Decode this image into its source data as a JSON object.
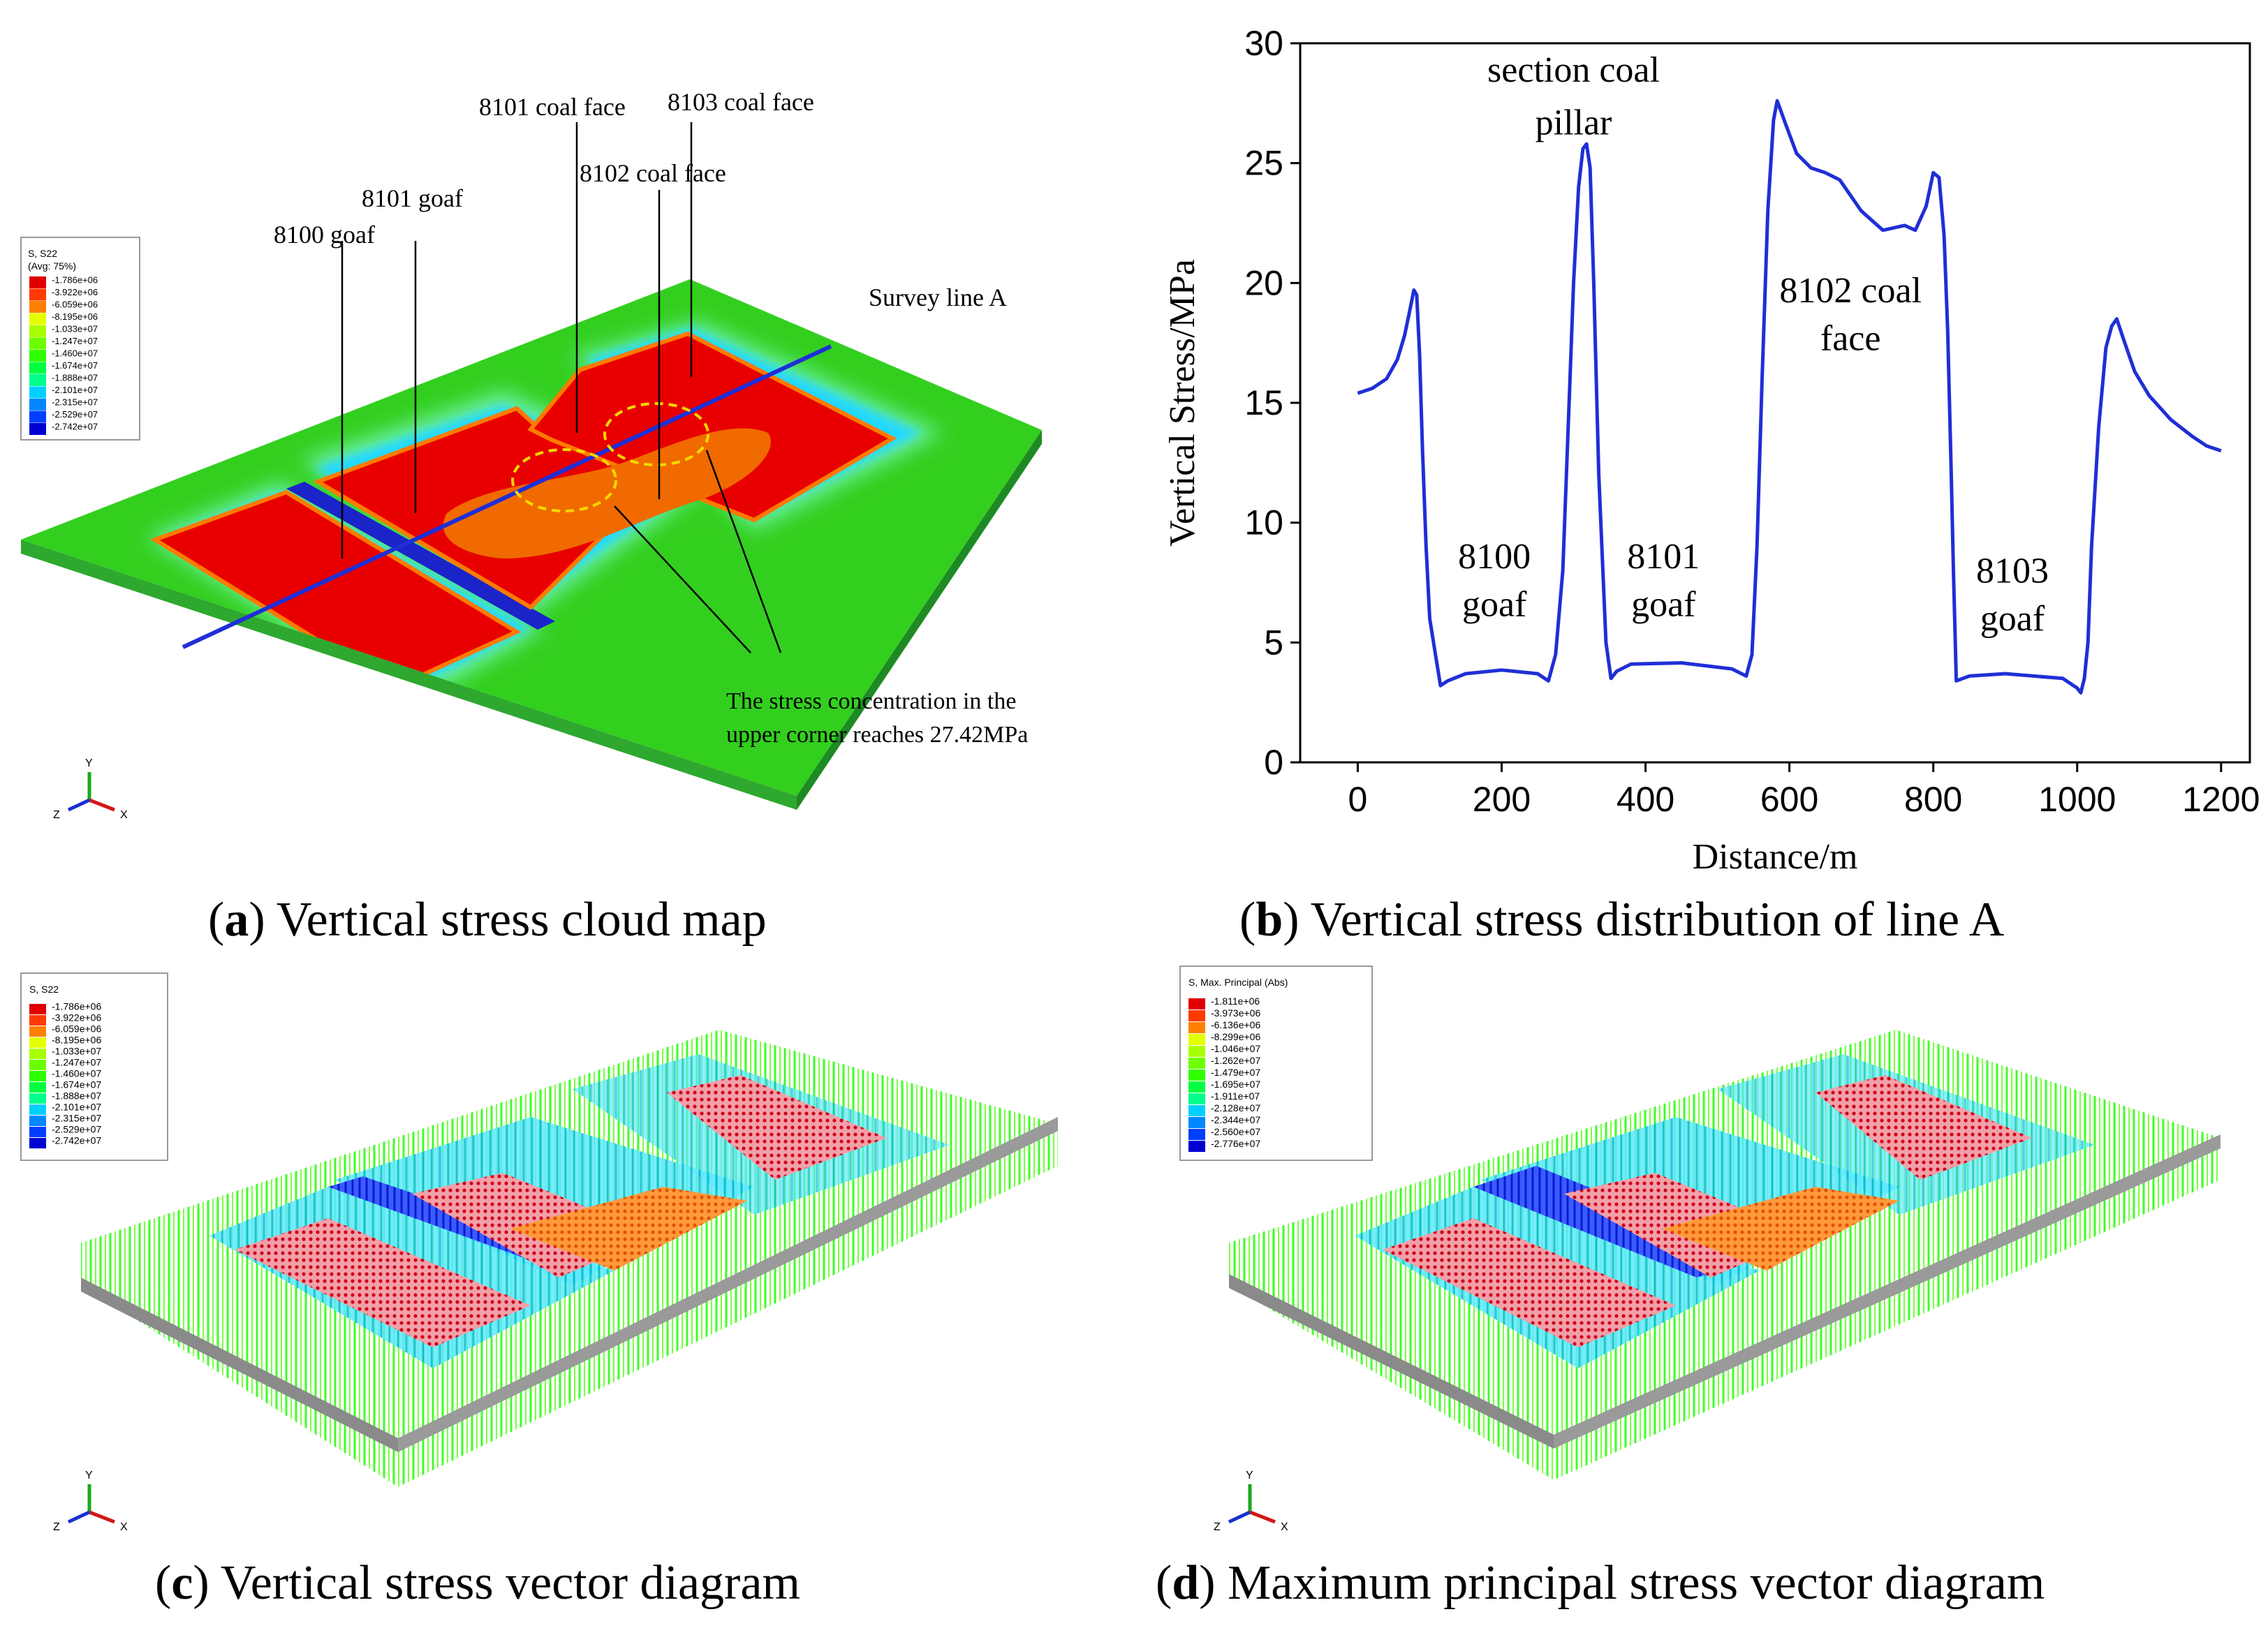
{
  "colors": {
    "legend_scale": [
      "#e00000",
      "#ff3a00",
      "#ff8000",
      "#ffbf00",
      "#e3ff00",
      "#a8ff00",
      "#6cff00",
      "#30ff00",
      "#00ff40",
      "#00ff8c",
      "#00ffd6",
      "#00d0ff",
      "#0087ff",
      "#003eff",
      "#0000d0"
    ],
    "survey_line": "#1f2fd6",
    "chart_line": "#1f2fd6",
    "dashed_circle": "#f5d800"
  },
  "panel_a": {
    "caption_letter": "a",
    "caption_text": ") Vertical stress cloud map",
    "legend": {
      "title1": "S, S22",
      "title2": "(Avg: 75%)",
      "values": [
        "-1.786e+06",
        "-3.922e+06",
        "-6.059e+06",
        "-8.195e+06",
        "-1.033e+07",
        "-1.247e+07",
        "-1.460e+07",
        "-1.674e+07",
        "-1.888e+07",
        "-2.101e+07",
        "-2.315e+07",
        "-2.529e+07",
        "-2.742e+07"
      ]
    },
    "labels": {
      "goaf_8100": "8100 goaf",
      "goaf_8101": "8101 goaf",
      "face_8101": "8101 coal face",
      "face_8102": "8102 coal face",
      "face_8103": "8103 coal face",
      "survey_line": "Survey line A",
      "stress_note_1": "The stress concentration in the",
      "stress_note_2": "upper corner reaches 27.42MPa"
    },
    "axis_triad": {
      "y": "Y",
      "z": "Z",
      "x": "X"
    }
  },
  "panel_b": {
    "caption_letter": "b",
    "caption_text": ") Vertical stress distribution of line A"
  },
  "panel_c": {
    "caption_letter": "c",
    "caption_text": ") Vertical stress vector diagram",
    "legend": {
      "title1": "S, S22",
      "values": [
        "-1.786e+06",
        "-3.922e+06",
        "-6.059e+06",
        "-8.195e+06",
        "-1.033e+07",
        "-1.247e+07",
        "-1.460e+07",
        "-1.674e+07",
        "-1.888e+07",
        "-2.101e+07",
        "-2.315e+07",
        "-2.529e+07",
        "-2.742e+07"
      ]
    },
    "axis_triad": {
      "y": "Y",
      "z": "Z",
      "x": "X"
    }
  },
  "panel_d": {
    "caption_letter": "d",
    "caption_text": ") Maximum principal stress vector diagram",
    "legend": {
      "title1": "S, Max. Principal (Abs)",
      "values": [
        "-1.811e+06",
        "-3.973e+06",
        "-6.136e+06",
        "-8.299e+06",
        "-1.046e+07",
        "-1.262e+07",
        "-1.479e+07",
        "-1.695e+07",
        "-1.911e+07",
        "-2.128e+07",
        "-2.344e+07",
        "-2.560e+07",
        "-2.776e+07"
      ]
    },
    "axis_triad": {
      "y": "Y",
      "z": "Z",
      "x": "X"
    }
  },
  "chart_data": {
    "type": "line",
    "title": "",
    "xlabel": "Distance/m",
    "ylabel": "Vertical Stress/MPa",
    "xlim": [
      -80,
      1240
    ],
    "ylim": [
      0,
      30
    ],
    "xticks": [
      0,
      200,
      400,
      600,
      800,
      1000,
      1200
    ],
    "yticks": [
      0,
      5,
      10,
      15,
      20,
      25,
      30
    ],
    "grid": false,
    "legend": "none",
    "annotations": [
      {
        "text": "section coal",
        "x": 300,
        "y": 28.4
      },
      {
        "text": "pillar",
        "x": 300,
        "y": 26.2
      },
      {
        "text": "8102 coal",
        "x": 685,
        "y": 19.2
      },
      {
        "text": "face",
        "x": 685,
        "y": 17.2
      },
      {
        "text": "8100",
        "x": 190,
        "y": 8.1
      },
      {
        "text": "goaf",
        "x": 190,
        "y": 6.1
      },
      {
        "text": "8101",
        "x": 425,
        "y": 8.1
      },
      {
        "text": "goaf",
        "x": 425,
        "y": 6.1
      },
      {
        "text": "8103",
        "x": 910,
        "y": 7.5
      },
      {
        "text": "goaf",
        "x": 910,
        "y": 5.5
      }
    ],
    "series": [
      {
        "x": [
          0,
          20,
          40,
          55,
          65,
          72,
          78,
          82,
          86,
          90,
          95,
          100,
          108,
          115,
          125,
          150,
          200,
          250,
          265,
          275,
          285,
          295,
          300,
          307,
          313,
          318,
          323,
          328,
          335,
          345,
          352,
          360,
          380,
          450,
          520,
          540,
          548,
          555,
          562,
          570,
          578,
          583,
          595,
          610,
          630,
          650,
          670,
          700,
          730,
          760,
          775,
          790,
          800,
          808,
          815,
          820,
          825,
          828,
          832,
          850,
          900,
          980,
          1000,
          1005,
          1010,
          1015,
          1020,
          1030,
          1040,
          1048,
          1055,
          1065,
          1080,
          1100,
          1130,
          1160,
          1180,
          1200
        ],
        "y": [
          15.4,
          15.6,
          16.0,
          16.8,
          17.8,
          18.8,
          19.7,
          19.5,
          17.0,
          13.0,
          9.0,
          6.0,
          4.5,
          3.2,
          3.4,
          3.7,
          3.85,
          3.7,
          3.4,
          4.5,
          8.0,
          16.0,
          20.0,
          24.0,
          25.6,
          25.8,
          24.8,
          20.0,
          12.0,
          5.0,
          3.5,
          3.8,
          4.1,
          4.15,
          3.9,
          3.6,
          4.5,
          9.0,
          16.0,
          23.0,
          26.8,
          27.6,
          26.6,
          25.4,
          24.8,
          24.6,
          24.3,
          23.0,
          22.2,
          22.4,
          22.2,
          23.2,
          24.6,
          24.4,
          22.0,
          18.0,
          12.0,
          8.0,
          3.4,
          3.6,
          3.7,
          3.5,
          3.1,
          2.9,
          3.5,
          5.0,
          9.0,
          14.0,
          17.3,
          18.2,
          18.5,
          17.6,
          16.3,
          15.3,
          14.3,
          13.6,
          13.2,
          13.0
        ]
      }
    ]
  }
}
